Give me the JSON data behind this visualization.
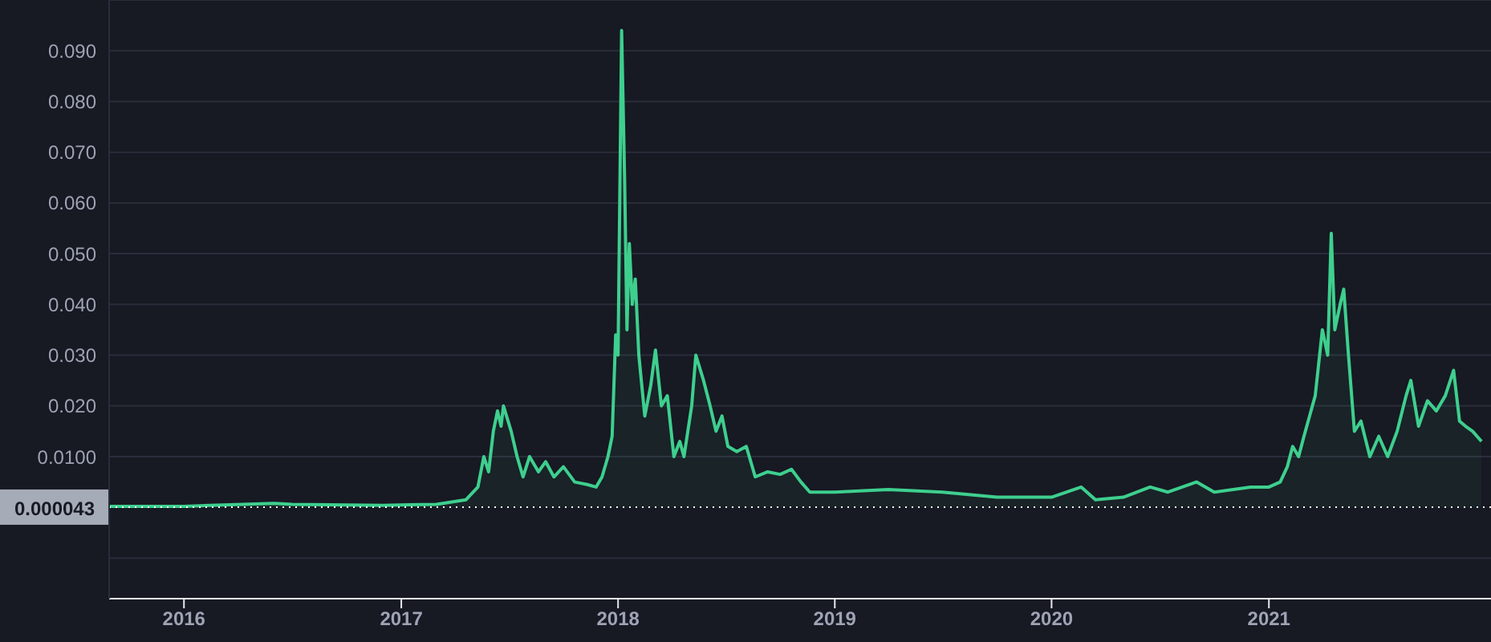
{
  "chart_data": {
    "type": "area",
    "grid": "y",
    "line_style": "solid",
    "marker": "none",
    "xlim": [
      "2015-08-28",
      "2022-01-10"
    ],
    "xticks": [
      "2016",
      "2017",
      "2018",
      "2019",
      "2020",
      "2021"
    ],
    "ylim": [
      -0.018,
      0.1
    ],
    "yticks": [
      {
        "value": -0.01,
        "label": null
      },
      {
        "value": 0.01,
        "label": "0.0100"
      },
      {
        "value": 0.02,
        "label": "0.020"
      },
      {
        "value": 0.03,
        "label": "0.030"
      },
      {
        "value": 0.04,
        "label": "0.040"
      },
      {
        "value": 0.05,
        "label": "0.050"
      },
      {
        "value": 0.06,
        "label": "0.060"
      },
      {
        "value": 0.07,
        "label": "0.070"
      },
      {
        "value": 0.08,
        "label": "0.080"
      },
      {
        "value": 0.09,
        "label": "0.090"
      }
    ],
    "ref_lines": [
      {
        "axis": "y",
        "value": 4.3e-05,
        "label": "0.000043",
        "color": "#ffffff",
        "line_style": "dotted"
      }
    ],
    "x": [
      "2015-08-28",
      "2016-01-01",
      "2016-06-01",
      "2016-07-01",
      "2016-12-01",
      "2017-03-01",
      "2017-04-20",
      "2017-05-10",
      "2017-05-20",
      "2017-05-28",
      "2017-06-05",
      "2017-06-12",
      "2017-06-18",
      "2017-06-22",
      "2017-07-05",
      "2017-07-15",
      "2017-07-25",
      "2017-08-05",
      "2017-08-20",
      "2017-09-01",
      "2017-09-15",
      "2017-10-01",
      "2017-10-20",
      "2017-11-10",
      "2017-11-25",
      "2017-12-05",
      "2017-12-15",
      "2017-12-22",
      "2017-12-28",
      "2018-01-01",
      "2018-01-07",
      "2018-01-12",
      "2018-01-16",
      "2018-01-20",
      "2018-01-25",
      "2018-01-30",
      "2018-02-05",
      "2018-02-15",
      "2018-02-25",
      "2018-03-05",
      "2018-03-15",
      "2018-03-25",
      "2018-04-05",
      "2018-04-15",
      "2018-04-22",
      "2018-05-05",
      "2018-05-12",
      "2018-05-25",
      "2018-06-05",
      "2018-06-15",
      "2018-06-25",
      "2018-07-05",
      "2018-07-20",
      "2018-08-05",
      "2018-08-20",
      "2018-09-10",
      "2018-10-01",
      "2018-10-20",
      "2018-11-05",
      "2018-11-20",
      "2019-01-01",
      "2019-04-01",
      "2019-07-01",
      "2019-10-01",
      "2020-01-01",
      "2020-02-20",
      "2020-03-15",
      "2020-05-01",
      "2020-06-15",
      "2020-07-15",
      "2020-09-01",
      "2020-10-01",
      "2020-12-01",
      "2021-01-01",
      "2021-01-20",
      "2021-02-01",
      "2021-02-10",
      "2021-02-20",
      "2021-03-01",
      "2021-03-20",
      "2021-04-01",
      "2021-04-10",
      "2021-04-16",
      "2021-04-22",
      "2021-05-01",
      "2021-05-07",
      "2021-05-15",
      "2021-05-25",
      "2021-06-05",
      "2021-06-20",
      "2021-07-05",
      "2021-07-20",
      "2021-08-05",
      "2021-08-20",
      "2021-08-28",
      "2021-09-10",
      "2021-09-25",
      "2021-10-10",
      "2021-10-25",
      "2021-11-08",
      "2021-11-18",
      "2021-11-28",
      "2021-12-10",
      "2021-12-25"
    ],
    "series": [
      {
        "color": "#3ecf8e",
        "values": [
          0.0002,
          0.0002,
          0.0008,
          0.0006,
          0.0004,
          0.0006,
          0.0015,
          0.004,
          0.01,
          0.007,
          0.015,
          0.019,
          0.016,
          0.02,
          0.015,
          0.01,
          0.006,
          0.01,
          0.007,
          0.009,
          0.006,
          0.008,
          0.005,
          0.0045,
          0.004,
          0.006,
          0.01,
          0.014,
          0.034,
          0.03,
          0.094,
          0.065,
          0.035,
          0.052,
          0.04,
          0.045,
          0.03,
          0.018,
          0.024,
          0.031,
          0.02,
          0.022,
          0.01,
          0.013,
          0.01,
          0.02,
          0.03,
          0.025,
          0.02,
          0.015,
          0.018,
          0.012,
          0.011,
          0.012,
          0.006,
          0.007,
          0.0065,
          0.0075,
          0.005,
          0.003,
          0.003,
          0.0035,
          0.003,
          0.002,
          0.002,
          0.004,
          0.0015,
          0.002,
          0.004,
          0.003,
          0.005,
          0.003,
          0.004,
          0.004,
          0.005,
          0.008,
          0.012,
          0.01,
          0.014,
          0.022,
          0.035,
          0.03,
          0.054,
          0.035,
          0.04,
          0.043,
          0.03,
          0.015,
          0.017,
          0.01,
          0.014,
          0.01,
          0.015,
          0.022,
          0.025,
          0.016,
          0.021,
          0.019,
          0.022,
          0.027,
          0.017,
          0.016,
          0.015,
          0.013
        ]
      }
    ]
  }
}
